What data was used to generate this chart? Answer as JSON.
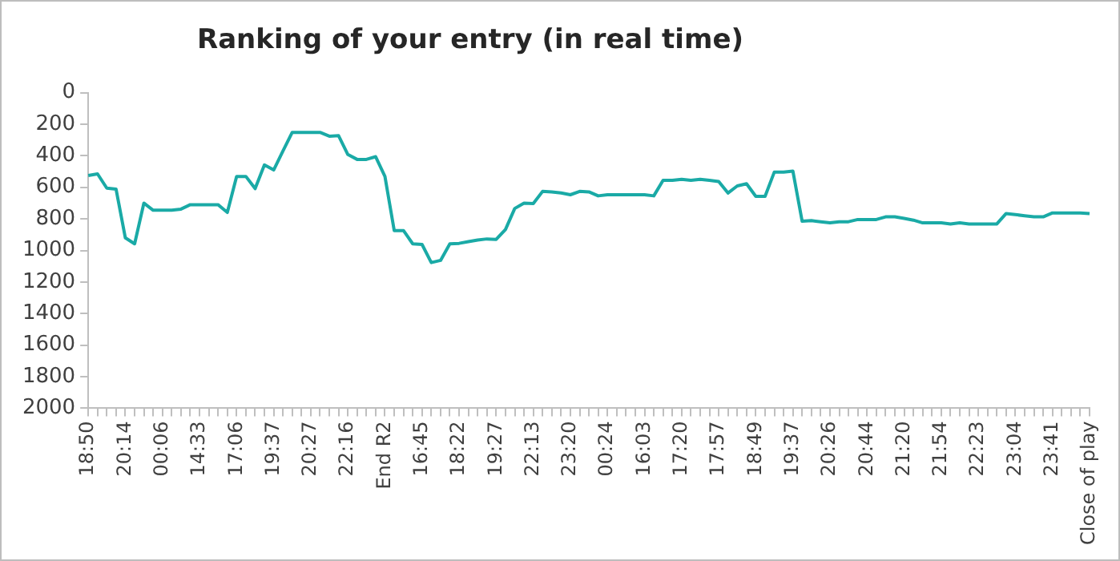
{
  "chart_data": {
    "type": "line",
    "title": "Ranking of your entry (in real time)",
    "categories": [
      "18:50",
      null,
      null,
      null,
      "20:14",
      null,
      null,
      null,
      "00:06",
      null,
      null,
      null,
      "14:33",
      null,
      null,
      null,
      "17:06",
      null,
      null,
      null,
      "19:37",
      null,
      null,
      null,
      "20:27",
      null,
      null,
      null,
      "22:16",
      null,
      null,
      null,
      "End R2",
      null,
      null,
      null,
      "16:45",
      null,
      null,
      null,
      "18:22",
      null,
      null,
      null,
      "19:27",
      null,
      null,
      null,
      "22:13",
      null,
      null,
      null,
      "23:20",
      null,
      null,
      null,
      "00:24",
      null,
      null,
      null,
      "16:03",
      null,
      null,
      null,
      "17:20",
      null,
      null,
      null,
      "17:57",
      null,
      null,
      null,
      "18:49",
      null,
      null,
      null,
      "19:37",
      null,
      null,
      null,
      "20:26",
      null,
      null,
      null,
      "20:44",
      null,
      null,
      null,
      "21:20",
      null,
      null,
      null,
      "21:54",
      null,
      null,
      null,
      "22:23",
      null,
      null,
      null,
      "23:04",
      null,
      null,
      null,
      "23:41",
      null,
      null,
      null,
      "Close of play"
    ],
    "series": [
      {
        "color": "#1aaaa6",
        "values": [
          525,
          515,
          605,
          612,
          920,
          958,
          700,
          745,
          745,
          745,
          738,
          710,
          710,
          710,
          710,
          759,
          531,
          531,
          608,
          458,
          490,
          370,
          252,
          252,
          252,
          252,
          276,
          273,
          392,
          423,
          423,
          406,
          531,
          874,
          874,
          958,
          962,
          1077,
          1063,
          958,
          955,
          944,
          934,
          927,
          930,
          867,
          734,
          700,
          703,
          626,
          629,
          636,
          647,
          626,
          629,
          654,
          647,
          647,
          647,
          647,
          647,
          654,
          556,
          556,
          549,
          556,
          549,
          556,
          563,
          636,
          591,
          577,
          657,
          657,
          503,
          503,
          497,
          815,
          811,
          818,
          825,
          818,
          818,
          804,
          804,
          804,
          787,
          787,
          797,
          808,
          825,
          825,
          825,
          832,
          825,
          832,
          832,
          832,
          832,
          766,
          773,
          780,
          787,
          787,
          762,
          762,
          762,
          762,
          766
        ]
      }
    ],
    "ylim": [
      2000,
      0
    ],
    "yticks": [
      0,
      200,
      400,
      600,
      800,
      1000,
      1200,
      1400,
      1600,
      1800,
      2000
    ],
    "grid": false,
    "legend": false,
    "marker": "none",
    "line_style": "solid"
  }
}
